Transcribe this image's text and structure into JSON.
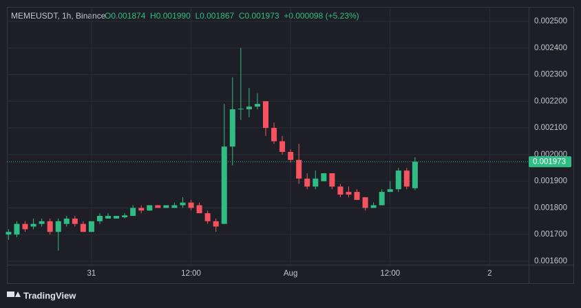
{
  "chart_data": {
    "type": "candlestick",
    "title": "MEMEUSDT, 1h, Binance",
    "ohlc_label": "O0.001874  H0.001990  L0.001867  C0.001973  +0.000098 (+5.23%)",
    "brand": "TradingView",
    "x": [
      0,
      1,
      2,
      3,
      4,
      5,
      6,
      7,
      8,
      9,
      10,
      11,
      12,
      13,
      14,
      15,
      16,
      17,
      18,
      19,
      20,
      21,
      22,
      23,
      24,
      25,
      26,
      27,
      28,
      29,
      30,
      31,
      32,
      33,
      34,
      35,
      36,
      37,
      38,
      39,
      40,
      41,
      42,
      43,
      44,
      45,
      46,
      47,
      48,
      49
    ],
    "open": [
      0.0017,
      0.0017,
      0.00174,
      0.00173,
      0.00174,
      0.00175,
      0.00171,
      0.00174,
      0.00176,
      0.00174,
      0.00171,
      0.00175,
      0.00176,
      0.00176,
      0.001765,
      0.00177,
      0.0018,
      0.00179,
      0.00181,
      0.0018,
      0.0018,
      0.00181,
      0.00182,
      0.00181,
      0.00178,
      0.00175,
      0.00174,
      0.00203,
      0.00217,
      0.00217,
      0.00218,
      0.0022,
      0.0021,
      0.00205,
      0.00201,
      0.00198,
      0.00191,
      0.00188,
      0.0019,
      0.00193,
      0.00188,
      0.00186,
      0.00186,
      0.00184,
      0.0018,
      0.00181,
      0.00186,
      0.00187,
      0.00194,
      0.001874
    ],
    "high": [
      0.00172,
      0.00175,
      0.00175,
      0.00176,
      0.00176,
      0.00176,
      0.00176,
      0.00177,
      0.00177,
      0.00175,
      0.00175,
      0.00178,
      0.00178,
      0.00177,
      0.00178,
      0.00181,
      0.00181,
      0.00181,
      0.00181,
      0.00181,
      0.00182,
      0.00184,
      0.00183,
      0.00182,
      0.00179,
      0.00176,
      0.00219,
      0.00229,
      0.0024,
      0.00225,
      0.00223,
      0.0022,
      0.00212,
      0.00207,
      0.00202,
      0.00204,
      0.00193,
      0.00194,
      0.00193,
      0.00193,
      0.00189,
      0.00188,
      0.00187,
      0.00184,
      0.00182,
      0.00187,
      0.0019,
      0.00195,
      0.00195,
      0.00199
    ],
    "low": [
      0.00168,
      0.00169,
      0.00171,
      0.00172,
      0.00173,
      0.0017,
      0.00164,
      0.00173,
      0.00173,
      0.00171,
      0.00171,
      0.00174,
      0.00176,
      0.00176,
      0.00176,
      0.00177,
      0.00178,
      0.00179,
      0.0018,
      0.0018,
      0.0018,
      0.0018,
      0.00179,
      0.00178,
      0.00174,
      0.00171,
      0.00174,
      0.00196,
      0.00213,
      0.00214,
      0.00217,
      0.00207,
      0.00204,
      0.002,
      0.00197,
      0.00189,
      0.00187,
      0.00187,
      0.0019,
      0.00187,
      0.00184,
      0.00184,
      0.00183,
      0.00179,
      0.0018,
      0.00181,
      0.00186,
      0.00186,
      0.00187,
      0.001867
    ],
    "close": [
      0.00171,
      0.00174,
      0.00172,
      0.00174,
      0.00175,
      0.00171,
      0.00175,
      0.00176,
      0.00174,
      0.00171,
      0.00175,
      0.00177,
      0.00177,
      0.00177,
      0.001772,
      0.0018,
      0.00179,
      0.00181,
      0.0018,
      0.00181,
      0.00181,
      0.00182,
      0.0018,
      0.00178,
      0.00175,
      0.00173,
      0.00203,
      0.00217,
      0.002172,
      0.00218,
      0.00219,
      0.0021,
      0.00205,
      0.00201,
      0.00198,
      0.00191,
      0.00188,
      0.00191,
      0.00193,
      0.00188,
      0.00185,
      0.00185,
      0.00183,
      0.0018,
      0.00181,
      0.00186,
      0.00187,
      0.00194,
      0.00188,
      0.001973
    ],
    "up_color": "#2fbd85",
    "down_color": "#f7525f",
    "last_price": 0.001973,
    "xlim": [
      -0.2,
      62.7
    ],
    "xticks": [
      {
        "value": 10,
        "label": "31"
      },
      {
        "value": 22,
        "label": "12:00"
      },
      {
        "value": 34,
        "label": "Aug"
      },
      {
        "value": 46,
        "label": "12:00"
      },
      {
        "value": 58,
        "label": "2"
      }
    ],
    "ylim": [
      0.001587,
      0.002554
    ],
    "yticks": [
      {
        "value": 0.0016,
        "label": "0.001600"
      },
      {
        "value": 0.0017,
        "label": "0.001700"
      },
      {
        "value": 0.0018,
        "label": "0.001800"
      },
      {
        "value": 0.0019,
        "label": "0.001900"
      },
      {
        "value": 0.002,
        "label": "0.002000"
      },
      {
        "value": 0.0021,
        "label": "0.002100"
      },
      {
        "value": 0.0022,
        "label": "0.002200"
      },
      {
        "value": 0.0023,
        "label": "0.002300"
      },
      {
        "value": 0.0024,
        "label": "0.002400"
      },
      {
        "value": 0.0025,
        "label": "0.002500"
      }
    ],
    "grid": true
  }
}
